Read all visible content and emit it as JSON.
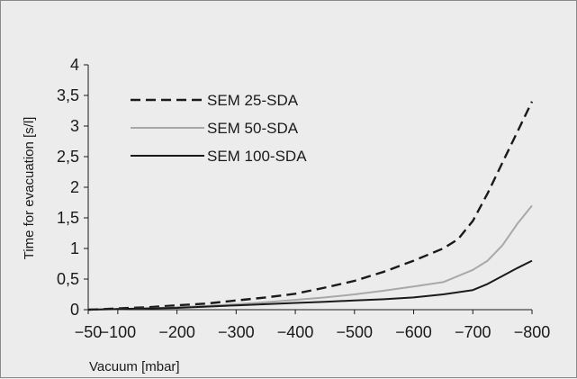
{
  "chart_data": {
    "type": "line",
    "xlabel": "Vacuum [mbar]",
    "ylabel": "Time for evacuation [s/l]",
    "x_ticks": [
      -50,
      -100,
      -200,
      -300,
      -400,
      -500,
      -600,
      -700,
      -800
    ],
    "x_tick_labels": [
      "−50",
      "−100",
      "−200",
      "−300",
      "−400",
      "−500",
      "−600",
      "−700",
      "−800"
    ],
    "y_ticks": [
      0,
      0.5,
      1,
      1.5,
      2,
      2.5,
      3,
      3.5,
      4
    ],
    "y_tick_labels": [
      "0",
      "0,5",
      "1",
      "1,5",
      "2",
      "2,5",
      "3",
      "3,5",
      "4"
    ],
    "xlim": [
      -50,
      -800
    ],
    "ylim": [
      0,
      4
    ],
    "grid": false,
    "legend_position": "top-left",
    "series": [
      {
        "name": "SEM 25-SDA",
        "style": "dashed",
        "color": "#1a1a1a",
        "points": [
          [
            -50,
            0.0
          ],
          [
            -100,
            0.02
          ],
          [
            -150,
            0.04
          ],
          [
            -200,
            0.07
          ],
          [
            -250,
            0.1
          ],
          [
            -300,
            0.15
          ],
          [
            -350,
            0.2
          ],
          [
            -400,
            0.26
          ],
          [
            -450,
            0.36
          ],
          [
            -500,
            0.47
          ],
          [
            -550,
            0.62
          ],
          [
            -600,
            0.8
          ],
          [
            -650,
            1.0
          ],
          [
            -675,
            1.15
          ],
          [
            -700,
            1.45
          ],
          [
            -725,
            1.9
          ],
          [
            -750,
            2.4
          ],
          [
            -775,
            2.9
          ],
          [
            -800,
            3.4
          ]
        ]
      },
      {
        "name": "SEM 50-SDA",
        "style": "solid",
        "color": "#a8a8a8",
        "points": [
          [
            -50,
            0.0
          ],
          [
            -100,
            0.01
          ],
          [
            -150,
            0.02
          ],
          [
            -200,
            0.04
          ],
          [
            -250,
            0.06
          ],
          [
            -300,
            0.09
          ],
          [
            -350,
            0.12
          ],
          [
            -400,
            0.16
          ],
          [
            -450,
            0.2
          ],
          [
            -500,
            0.25
          ],
          [
            -550,
            0.31
          ],
          [
            -600,
            0.38
          ],
          [
            -650,
            0.45
          ],
          [
            -700,
            0.65
          ],
          [
            -725,
            0.8
          ],
          [
            -750,
            1.05
          ],
          [
            -775,
            1.4
          ],
          [
            -800,
            1.7
          ]
        ]
      },
      {
        "name": "SEM 100-SDA",
        "style": "solid",
        "color": "#1a1a1a",
        "points": [
          [
            -50,
            0.0
          ],
          [
            -100,
            0.01
          ],
          [
            -150,
            0.02
          ],
          [
            -200,
            0.03
          ],
          [
            -250,
            0.05
          ],
          [
            -300,
            0.07
          ],
          [
            -350,
            0.09
          ],
          [
            -400,
            0.11
          ],
          [
            -450,
            0.13
          ],
          [
            -500,
            0.15
          ],
          [
            -550,
            0.17
          ],
          [
            -600,
            0.2
          ],
          [
            -650,
            0.25
          ],
          [
            -700,
            0.32
          ],
          [
            -725,
            0.42
          ],
          [
            -750,
            0.55
          ],
          [
            -775,
            0.68
          ],
          [
            -800,
            0.8
          ]
        ]
      }
    ]
  }
}
